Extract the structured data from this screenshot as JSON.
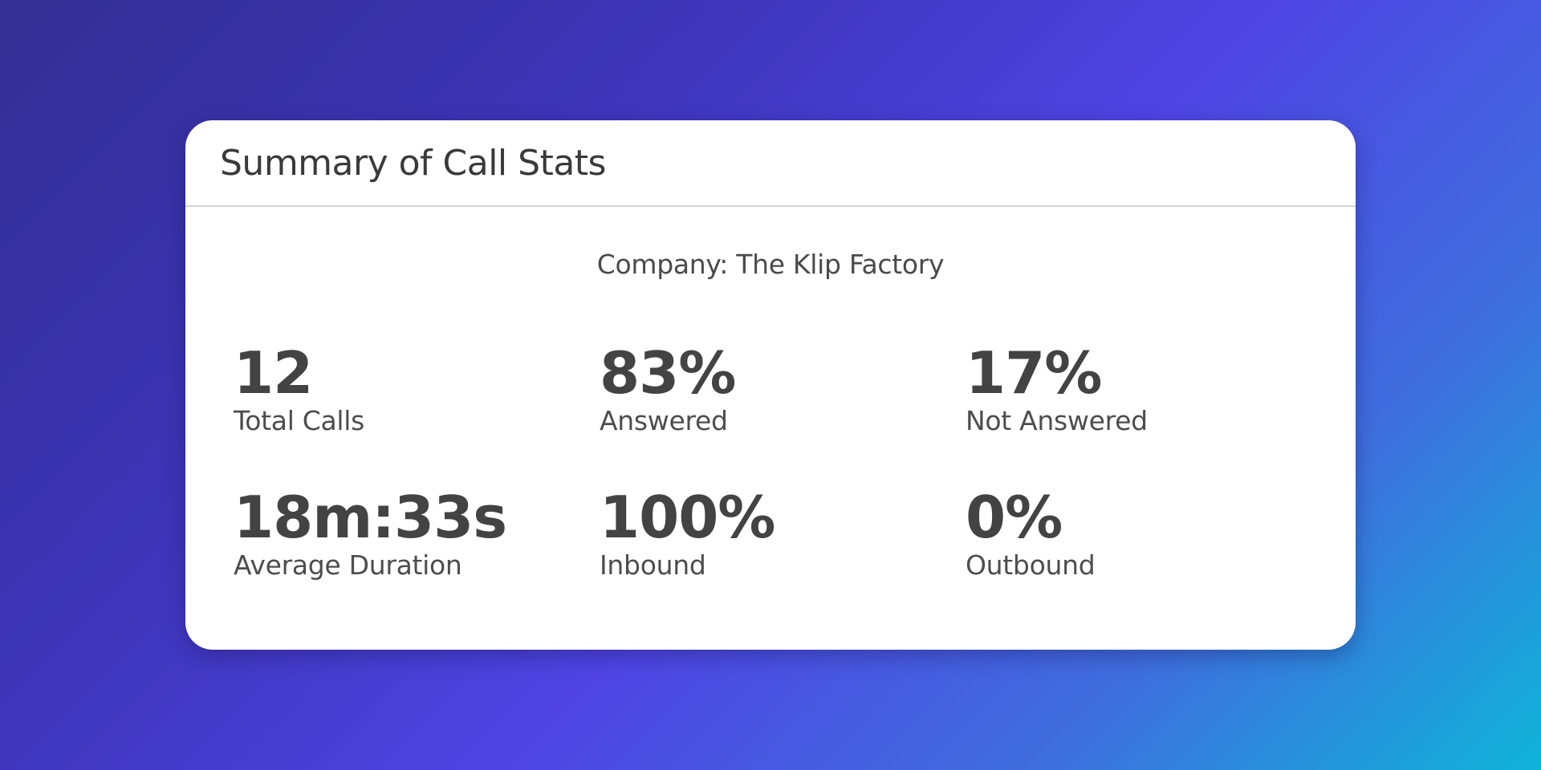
{
  "card": {
    "title": "Summary of Call Stats",
    "company": "Company: The Klip Factory",
    "stats": [
      {
        "value": "12",
        "label": "Total Calls"
      },
      {
        "value": "83%",
        "label": "Answered"
      },
      {
        "value": "17%",
        "label": "Not Answered"
      },
      {
        "value": "18m:33s",
        "label": "Average Duration"
      },
      {
        "value": "100%",
        "label": "Inbound"
      },
      {
        "value": "0%",
        "label": "Outbound"
      }
    ]
  },
  "colors": {
    "background_start": "#332f93",
    "background_mid": "#4f44e3",
    "background_end": "#0fb4d8",
    "card_background": "#ffffff",
    "value_text": "#434343",
    "label_text": "#4d4d4d"
  }
}
